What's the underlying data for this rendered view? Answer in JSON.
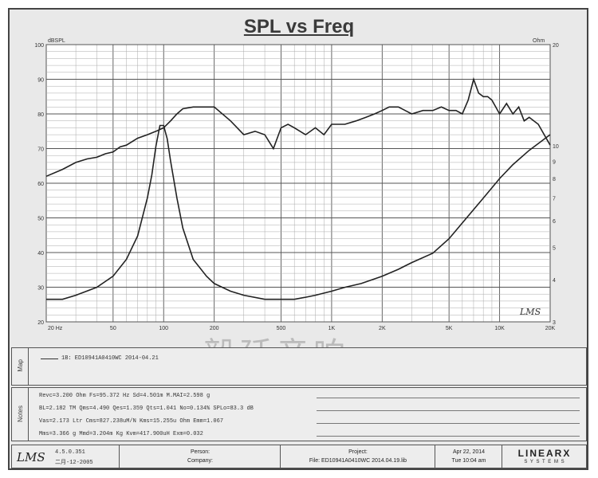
{
  "chart_data": {
    "type": "line",
    "title": "SPL vs Freq",
    "y_left_unit": "dBSPL",
    "y_right_unit": "Ohm",
    "x_scale": "log",
    "xlim": [
      20,
      20000
    ],
    "ylim_left": [
      20,
      100
    ],
    "ylim_right": [
      3,
      20
    ],
    "x_ticks": [
      "20 Hz",
      "50",
      "100",
      "200",
      "500",
      "1K",
      "2K",
      "5K",
      "10K",
      "20K"
    ],
    "y_left_ticks": [
      "100",
      "90",
      "80",
      "70",
      "60",
      "50",
      "40",
      "30",
      "20"
    ],
    "y_right_ticks": [
      "20",
      "10",
      "9",
      "8",
      "7",
      "6",
      "5",
      "4",
      "3"
    ],
    "grid": true,
    "series": [
      {
        "axis": "left",
        "x": [
          20,
          25,
          30,
          35,
          40,
          45,
          50,
          55,
          60,
          70,
          80,
          90,
          100,
          110,
          120,
          130,
          150,
          180,
          200,
          250,
          300,
          350,
          400,
          450,
          500,
          550,
          600,
          700,
          800,
          900,
          1000,
          1100,
          1200,
          1400,
          1600,
          1800,
          2000,
          2200,
          2500,
          3000,
          3500,
          4000,
          4500,
          5000,
          5500,
          6000,
          6500,
          7000,
          7500,
          8000,
          8500,
          9000,
          10000,
          11000,
          12000,
          13000,
          14000,
          15000,
          17000,
          20000
        ],
        "y": [
          62,
          64,
          66,
          67,
          67.5,
          68.5,
          69,
          70.5,
          71,
          73,
          74,
          75,
          76,
          78,
          80,
          81.5,
          82,
          82,
          82,
          78,
          74,
          75,
          74,
          70,
          76,
          77,
          76,
          74,
          76,
          74,
          77,
          77,
          77,
          78,
          79,
          80,
          81,
          82,
          82,
          80,
          81,
          81,
          82,
          81,
          81,
          80,
          84,
          90,
          86,
          85,
          85,
          84,
          80,
          83,
          80,
          82,
          78,
          79,
          77,
          71
        ]
      },
      {
        "axis": "right",
        "x": [
          20,
          25,
          30,
          40,
          50,
          60,
          70,
          80,
          85,
          90,
          95,
          100,
          105,
          110,
          120,
          130,
          150,
          180,
          200,
          250,
          300,
          400,
          500,
          600,
          700,
          800,
          1000,
          1200,
          1500,
          2000,
          2500,
          3000,
          4000,
          5000,
          6000,
          8000,
          10000,
          12000,
          15000,
          20000
        ],
        "y": [
          3.5,
          3.5,
          3.6,
          3.8,
          4.1,
          4.6,
          5.4,
          7,
          8.2,
          10,
          11.5,
          11.5,
          10.5,
          9,
          7,
          5.7,
          4.6,
          4.1,
          3.9,
          3.7,
          3.6,
          3.5,
          3.5,
          3.5,
          3.55,
          3.6,
          3.7,
          3.8,
          3.9,
          4.1,
          4.3,
          4.5,
          4.8,
          5.3,
          5.9,
          7,
          8,
          8.8,
          9.7,
          10.8
        ]
      }
    ]
  },
  "legend": {
    "map_entry": "1B: ED10941A0410WC 2014-04.21"
  },
  "sections": {
    "map_label": "Map",
    "notes_label": "Notes"
  },
  "params": [
    "Revc=3.200 Ohm  Fs=95.372 Hz  Sd=4.501m M.MAI=2.598 g",
    "BL=2.182 TM  Qms=4.490  Qes=1.359  Qts=1.041  No=0.134%  SPLo=83.3 dB",
    "Vas=2.173 Ltr  Cms=827.238uM/N  Kms=15.255u Ohm  Emm=1.067",
    "Mms=3.366 g  Mmd=3.204m Kg  Kvm=417.900uH  Exm=0.032"
  ],
  "footer": {
    "logo": "LMS",
    "version": "4.5.0.351",
    "version_date": "二月-12-2005",
    "person_label": "Person:",
    "company_label": "Company:",
    "project_label": "Project:",
    "project_file": "File: ED10941A0410WC 2014.04.19.lib",
    "date": "Apr 22, 2014",
    "time": "Tue 10:04 am",
    "brand": "LINEARX",
    "brand_sub": "S Y S T E M S"
  },
  "plot_logo": "LMS",
  "watermark": "毅廷音响"
}
